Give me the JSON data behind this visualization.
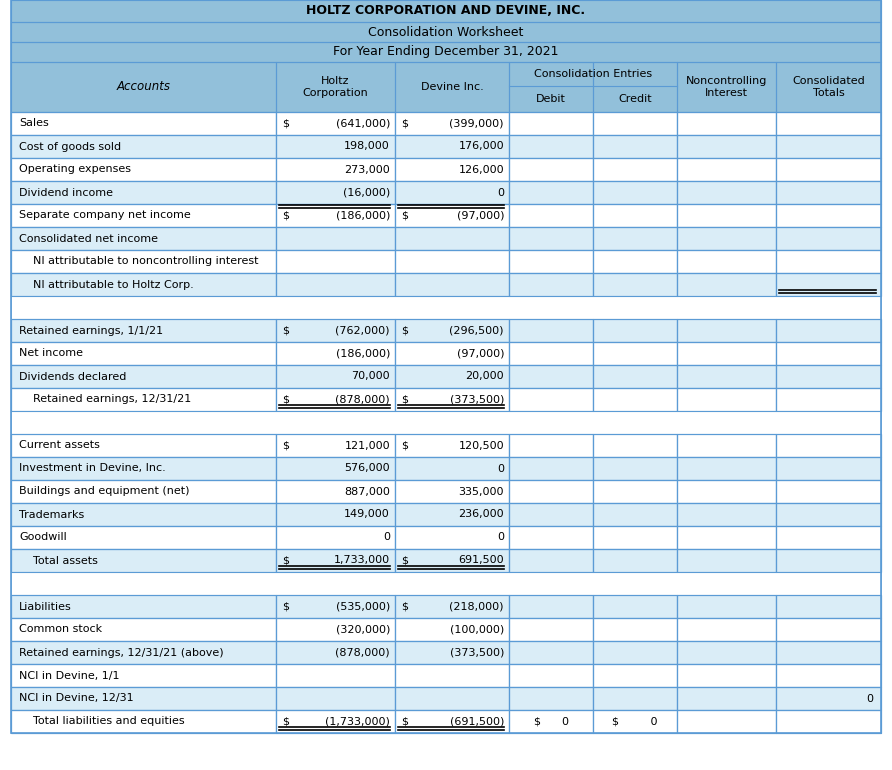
{
  "title1": "HOLTZ CORPORATION AND DEVINE, INC.",
  "title2": "Consolidation Worksheet",
  "title3": "For Year Ending December 31, 2021",
  "header_bg": "#92c0da",
  "row_bg_even": "#ffffff",
  "row_bg_odd": "#daedf7",
  "border_color": "#5b9bd5",
  "text_color": "#000000",
  "rows": [
    {
      "label": "Sales",
      "holtz_s": "$",
      "holtz_v": "(641,000)",
      "dev_s": "$",
      "dev_v": "(399,000)",
      "debit": "",
      "credit": "",
      "nci": "",
      "consol": "",
      "indent": 0,
      "double_h": false,
      "double_d": false,
      "sep": false,
      "top_double_h": false,
      "top_double_d": false
    },
    {
      "label": "Cost of goods sold",
      "holtz_s": "",
      "holtz_v": "198,000",
      "dev_s": "",
      "dev_v": "176,000",
      "debit": "",
      "credit": "",
      "nci": "",
      "consol": "",
      "indent": 0,
      "double_h": false,
      "double_d": false,
      "sep": false,
      "top_double_h": false,
      "top_double_d": false
    },
    {
      "label": "Operating expenses",
      "holtz_s": "",
      "holtz_v": "273,000",
      "dev_s": "",
      "dev_v": "126,000",
      "debit": "",
      "credit": "",
      "nci": "",
      "consol": "",
      "indent": 0,
      "double_h": false,
      "double_d": false,
      "sep": false,
      "top_double_h": false,
      "top_double_d": false
    },
    {
      "label": "Dividend income",
      "holtz_s": "",
      "holtz_v": "(16,000)",
      "dev_s": "",
      "dev_v": "0",
      "debit": "",
      "credit": "",
      "nci": "",
      "consol": "",
      "indent": 0,
      "double_h": false,
      "double_d": false,
      "sep": false,
      "top_double_h": false,
      "top_double_d": false
    },
    {
      "label": "Separate company net income",
      "holtz_s": "$",
      "holtz_v": "(186,000)",
      "dev_s": "$",
      "dev_v": "(97,000)",
      "debit": "",
      "credit": "",
      "nci": "",
      "consol": "",
      "indent": 0,
      "double_h": false,
      "double_d": false,
      "sep": false,
      "top_double_h": true,
      "top_double_d": true
    },
    {
      "label": "Consolidated net income",
      "holtz_s": "",
      "holtz_v": "",
      "dev_s": "",
      "dev_v": "",
      "debit": "",
      "credit": "",
      "nci": "",
      "consol": "",
      "indent": 0,
      "double_h": false,
      "double_d": false,
      "sep": false,
      "top_double_h": false,
      "top_double_d": false
    },
    {
      "label": "NI attributable to noncontrolling interest",
      "holtz_s": "",
      "holtz_v": "",
      "dev_s": "",
      "dev_v": "",
      "debit": "",
      "credit": "",
      "nci": "",
      "consol": "",
      "indent": 1,
      "double_h": false,
      "double_d": false,
      "sep": false,
      "top_double_h": false,
      "top_double_d": false
    },
    {
      "label": "NI attributable to Holtz Corp.",
      "holtz_s": "",
      "holtz_v": "",
      "dev_s": "",
      "dev_v": "",
      "debit": "",
      "credit": "",
      "nci": "",
      "consol": "",
      "indent": 1,
      "double_h": false,
      "double_d": false,
      "sep": false,
      "top_double_h": false,
      "top_double_d": false,
      "consol_double_bot": true
    },
    {
      "label": "",
      "holtz_s": "",
      "holtz_v": "",
      "dev_s": "",
      "dev_v": "",
      "debit": "",
      "credit": "",
      "nci": "",
      "consol": "",
      "indent": 0,
      "double_h": false,
      "double_d": false,
      "sep": true,
      "top_double_h": false,
      "top_double_d": false
    },
    {
      "label": "Retained earnings, 1/1/21",
      "holtz_s": "$",
      "holtz_v": "(762,000)",
      "dev_s": "$",
      "dev_v": "(296,500)",
      "debit": "",
      "credit": "",
      "nci": "",
      "consol": "",
      "indent": 0,
      "double_h": false,
      "double_d": false,
      "sep": false,
      "top_double_h": false,
      "top_double_d": false
    },
    {
      "label": "Net income",
      "holtz_s": "",
      "holtz_v": "(186,000)",
      "dev_s": "",
      "dev_v": "(97,000)",
      "debit": "",
      "credit": "",
      "nci": "",
      "consol": "",
      "indent": 0,
      "double_h": false,
      "double_d": false,
      "sep": false,
      "top_double_h": false,
      "top_double_d": false
    },
    {
      "label": "Dividends declared",
      "holtz_s": "",
      "holtz_v": "70,000",
      "dev_s": "",
      "dev_v": "20,000",
      "debit": "",
      "credit": "",
      "nci": "",
      "consol": "",
      "indent": 0,
      "double_h": false,
      "double_d": false,
      "sep": false,
      "top_double_h": false,
      "top_double_d": false
    },
    {
      "label": "Retained earnings, 12/31/21",
      "holtz_s": "$",
      "holtz_v": "(878,000)",
      "dev_s": "$",
      "dev_v": "(373,500)",
      "debit": "",
      "credit": "",
      "nci": "",
      "consol": "",
      "indent": 1,
      "double_h": true,
      "double_d": true,
      "sep": false,
      "top_double_h": false,
      "top_double_d": false
    },
    {
      "label": "",
      "holtz_s": "",
      "holtz_v": "",
      "dev_s": "",
      "dev_v": "",
      "debit": "",
      "credit": "",
      "nci": "",
      "consol": "",
      "indent": 0,
      "double_h": false,
      "double_d": false,
      "sep": true,
      "top_double_h": false,
      "top_double_d": false
    },
    {
      "label": "Current assets",
      "holtz_s": "$",
      "holtz_v": "121,000",
      "dev_s": "$",
      "dev_v": "120,500",
      "debit": "",
      "credit": "",
      "nci": "",
      "consol": "",
      "indent": 0,
      "double_h": false,
      "double_d": false,
      "sep": false,
      "top_double_h": false,
      "top_double_d": false
    },
    {
      "label": "Investment in Devine, Inc.",
      "holtz_s": "",
      "holtz_v": "576,000",
      "dev_s": "",
      "dev_v": "0",
      "debit": "",
      "credit": "",
      "nci": "",
      "consol": "",
      "indent": 0,
      "double_h": false,
      "double_d": false,
      "sep": false,
      "top_double_h": false,
      "top_double_d": false
    },
    {
      "label": "Buildings and equipment (net)",
      "holtz_s": "",
      "holtz_v": "887,000",
      "dev_s": "",
      "dev_v": "335,000",
      "debit": "",
      "credit": "",
      "nci": "",
      "consol": "",
      "indent": 0,
      "double_h": false,
      "double_d": false,
      "sep": false,
      "top_double_h": false,
      "top_double_d": false
    },
    {
      "label": "Trademarks",
      "holtz_s": "",
      "holtz_v": "149,000",
      "dev_s": "",
      "dev_v": "236,000",
      "debit": "",
      "credit": "",
      "nci": "",
      "consol": "",
      "indent": 0,
      "double_h": false,
      "double_d": false,
      "sep": false,
      "top_double_h": false,
      "top_double_d": false
    },
    {
      "label": "Goodwill",
      "holtz_s": "",
      "holtz_v": "0",
      "dev_s": "",
      "dev_v": "0",
      "debit": "",
      "credit": "",
      "nci": "",
      "consol": "",
      "indent": 0,
      "double_h": false,
      "double_d": false,
      "sep": false,
      "top_double_h": false,
      "top_double_d": false
    },
    {
      "label": "Total assets",
      "holtz_s": "$",
      "holtz_v": "1,733,000",
      "dev_s": "$",
      "dev_v": "691,500",
      "debit": "",
      "credit": "",
      "nci": "",
      "consol": "",
      "indent": 1,
      "double_h": true,
      "double_d": true,
      "sep": false,
      "top_double_h": false,
      "top_double_d": false
    },
    {
      "label": "",
      "holtz_s": "",
      "holtz_v": "",
      "dev_s": "",
      "dev_v": "",
      "debit": "",
      "credit": "",
      "nci": "",
      "consol": "",
      "indent": 0,
      "double_h": false,
      "double_d": false,
      "sep": true,
      "top_double_h": false,
      "top_double_d": false
    },
    {
      "label": "Liabilities",
      "holtz_s": "$",
      "holtz_v": "(535,000)",
      "dev_s": "$",
      "dev_v": "(218,000)",
      "debit": "",
      "credit": "",
      "nci": "",
      "consol": "",
      "indent": 0,
      "double_h": false,
      "double_d": false,
      "sep": false,
      "top_double_h": false,
      "top_double_d": false
    },
    {
      "label": "Common stock",
      "holtz_s": "",
      "holtz_v": "(320,000)",
      "dev_s": "",
      "dev_v": "(100,000)",
      "debit": "",
      "credit": "",
      "nci": "",
      "consol": "",
      "indent": 0,
      "double_h": false,
      "double_d": false,
      "sep": false,
      "top_double_h": false,
      "top_double_d": false
    },
    {
      "label": "Retained earnings, 12/31/21 (above)",
      "holtz_s": "",
      "holtz_v": "(878,000)",
      "dev_s": "",
      "dev_v": "(373,500)",
      "debit": "",
      "credit": "",
      "nci": "",
      "consol": "",
      "indent": 0,
      "double_h": false,
      "double_d": false,
      "sep": false,
      "top_double_h": false,
      "top_double_d": false
    },
    {
      "label": "NCI in Devine, 1/1",
      "holtz_s": "",
      "holtz_v": "",
      "dev_s": "",
      "dev_v": "",
      "debit": "",
      "credit": "",
      "nci": "",
      "consol": "",
      "indent": 0,
      "double_h": false,
      "double_d": false,
      "sep": false,
      "top_double_h": false,
      "top_double_d": false
    },
    {
      "label": "NCI in Devine, 12/31",
      "holtz_s": "",
      "holtz_v": "",
      "dev_s": "",
      "dev_v": "",
      "debit": "",
      "credit": "",
      "nci": "",
      "consol": "0",
      "indent": 0,
      "double_h": false,
      "double_d": false,
      "sep": false,
      "top_double_h": false,
      "top_double_d": false
    },
    {
      "label": "Total liabilities and equities",
      "holtz_s": "$",
      "holtz_v": "(1,733,000)",
      "dev_s": "$",
      "dev_v": "(691,500)",
      "debit": "$      0",
      "credit": "$         0",
      "nci": "",
      "consol": "",
      "indent": 1,
      "double_h": true,
      "double_d": true,
      "sep": false,
      "top_double_h": false,
      "top_double_d": false
    }
  ]
}
